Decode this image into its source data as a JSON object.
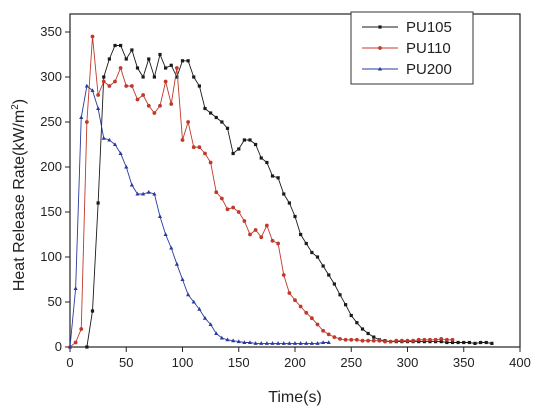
{
  "chart_data": {
    "type": "line",
    "xlabel": "Time(s)",
    "ylabel_main": "Heat Release Rate(kW/m",
    "ylabel_sup": "2",
    "ylabel_close": ")",
    "xlim": [
      0,
      400
    ],
    "ylim": [
      0,
      370
    ],
    "xticks": [
      0,
      50,
      100,
      150,
      200,
      250,
      300,
      350,
      400
    ],
    "yticks": [
      0,
      50,
      100,
      150,
      200,
      250,
      300,
      350
    ],
    "grid": false,
    "legend_position": "top-right",
    "series": [
      {
        "name": "PU105",
        "color": "#1a1a1a",
        "marker": "square",
        "x": [
          15,
          20,
          25,
          30,
          35,
          40,
          45,
          50,
          55,
          60,
          65,
          70,
          75,
          80,
          85,
          90,
          95,
          100,
          105,
          110,
          115,
          120,
          125,
          130,
          135,
          140,
          145,
          150,
          155,
          160,
          165,
          170,
          175,
          180,
          185,
          190,
          195,
          200,
          205,
          210,
          215,
          220,
          225,
          230,
          235,
          240,
          245,
          250,
          255,
          260,
          265,
          270,
          275,
          280,
          285,
          290,
          295,
          300,
          305,
          310,
          315,
          320,
          325,
          330,
          335,
          340,
          345,
          350,
          355,
          360,
          365,
          370,
          375
        ],
        "y": [
          0,
          40,
          160,
          300,
          320,
          335,
          335,
          320,
          330,
          310,
          300,
          320,
          300,
          325,
          310,
          313,
          300,
          318,
          318,
          300,
          290,
          265,
          260,
          255,
          250,
          243,
          215,
          220,
          230,
          230,
          225,
          210,
          205,
          190,
          188,
          170,
          160,
          145,
          125,
          115,
          105,
          100,
          90,
          80,
          70,
          58,
          47,
          35,
          27,
          20,
          15,
          11,
          8,
          7,
          6,
          6,
          6,
          6,
          6,
          6,
          6,
          6,
          6,
          6,
          5,
          5,
          5,
          5,
          5,
          4,
          5,
          5,
          4
        ]
      },
      {
        "name": "PU110",
        "color": "#c0392b",
        "marker": "circle",
        "x": [
          0,
          5,
          10,
          15,
          20,
          25,
          30,
          35,
          40,
          45,
          50,
          55,
          60,
          65,
          70,
          75,
          80,
          85,
          90,
          95,
          100,
          105,
          110,
          115,
          120,
          125,
          130,
          135,
          140,
          145,
          150,
          155,
          160,
          165,
          170,
          175,
          180,
          185,
          190,
          195,
          200,
          205,
          210,
          215,
          220,
          225,
          230,
          235,
          240,
          245,
          250,
          255,
          260,
          265,
          270,
          275,
          280,
          285,
          290,
          295,
          300,
          305,
          310,
          315,
          320,
          325,
          330,
          335,
          340
        ],
        "y": [
          0,
          5,
          20,
          250,
          345,
          280,
          295,
          290,
          295,
          310,
          290,
          290,
          275,
          280,
          268,
          260,
          268,
          295,
          270,
          310,
          230,
          250,
          222,
          222,
          215,
          205,
          172,
          165,
          153,
          155,
          150,
          140,
          125,
          130,
          122,
          135,
          118,
          115,
          80,
          60,
          52,
          45,
          38,
          32,
          25,
          18,
          14,
          11,
          9,
          8,
          8,
          8,
          7,
          7,
          7,
          7,
          6,
          6,
          7,
          7,
          7,
          7,
          8,
          8,
          8,
          8,
          9,
          8,
          8
        ]
      },
      {
        "name": "PU200",
        "color": "#2a3a9e",
        "marker": "triangle",
        "x": [
          0,
          5,
          10,
          15,
          20,
          25,
          30,
          35,
          40,
          45,
          50,
          55,
          60,
          65,
          70,
          75,
          80,
          85,
          90,
          95,
          100,
          105,
          110,
          115,
          120,
          125,
          130,
          135,
          140,
          145,
          150,
          155,
          160,
          165,
          170,
          175,
          180,
          185,
          190,
          195,
          200,
          205,
          210,
          215,
          220,
          225,
          230
        ],
        "y": [
          0,
          65,
          255,
          290,
          285,
          265,
          232,
          230,
          225,
          215,
          200,
          180,
          170,
          170,
          172,
          170,
          145,
          125,
          110,
          92,
          75,
          58,
          50,
          42,
          32,
          25,
          15,
          10,
          8,
          7,
          6,
          5,
          5,
          4,
          4,
          4,
          4,
          4,
          4,
          4,
          4,
          4,
          4,
          4,
          4,
          5,
          5
        ]
      }
    ]
  }
}
